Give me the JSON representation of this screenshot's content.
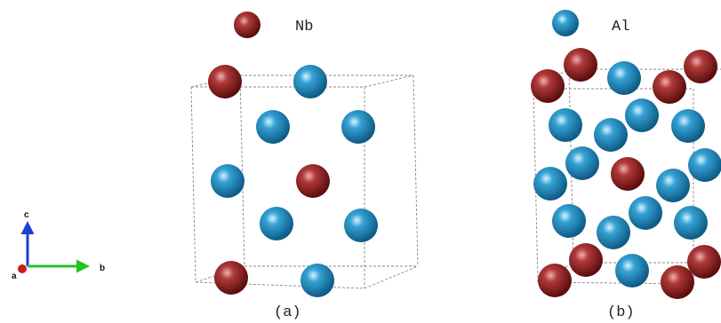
{
  "legend": [
    {
      "label": "Nb"
    },
    {
      "label": "Al"
    }
  ],
  "axes": {
    "c": "c",
    "b": "b",
    "a": "a"
  },
  "panels": [
    {
      "label": "(a)"
    },
    {
      "label": "(b)"
    }
  ]
}
